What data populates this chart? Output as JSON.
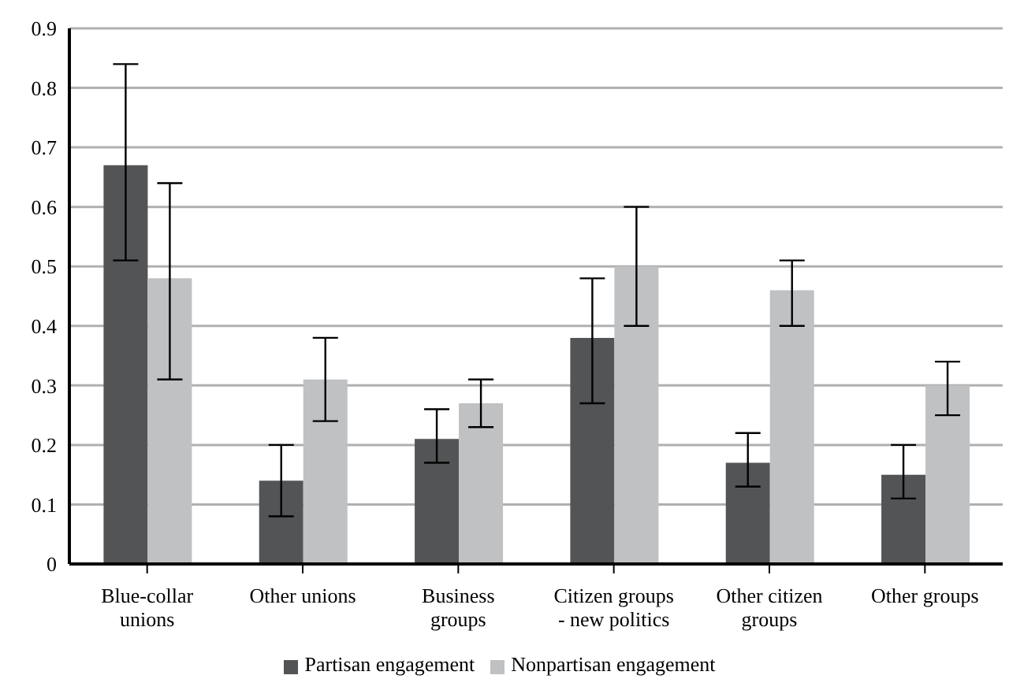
{
  "chart_data": {
    "type": "bar",
    "categories": [
      "Blue-collar unions",
      "Other unions",
      "Business groups",
      "Citizen groups - new politics",
      "Other citizen groups",
      "Other groups"
    ],
    "series": [
      {
        "name": "Partisan engagement",
        "color": "#535456",
        "values": [
          0.67,
          0.14,
          0.21,
          0.38,
          0.17,
          0.15
        ],
        "errors": [
          [
            0.51,
            0.84
          ],
          [
            0.08,
            0.2
          ],
          [
            0.17,
            0.26
          ],
          [
            0.27,
            0.48
          ],
          [
            0.13,
            0.22
          ],
          [
            0.11,
            0.2
          ]
        ]
      },
      {
        "name": "Nonpartisan engagement",
        "color": "#c0c1c3",
        "values": [
          0.48,
          0.31,
          0.27,
          0.5,
          0.46,
          0.3
        ],
        "errors": [
          [
            0.31,
            0.64
          ],
          [
            0.24,
            0.38
          ],
          [
            0.23,
            0.31
          ],
          [
            0.4,
            0.6
          ],
          [
            0.4,
            0.51
          ],
          [
            0.25,
            0.34
          ]
        ]
      }
    ],
    "ylim": [
      0,
      0.9
    ],
    "yticks": [
      0,
      0.1,
      0.2,
      0.3,
      0.4,
      0.5,
      0.6,
      0.7,
      0.8,
      0.9
    ],
    "grid": "y",
    "legend": "bottom"
  }
}
